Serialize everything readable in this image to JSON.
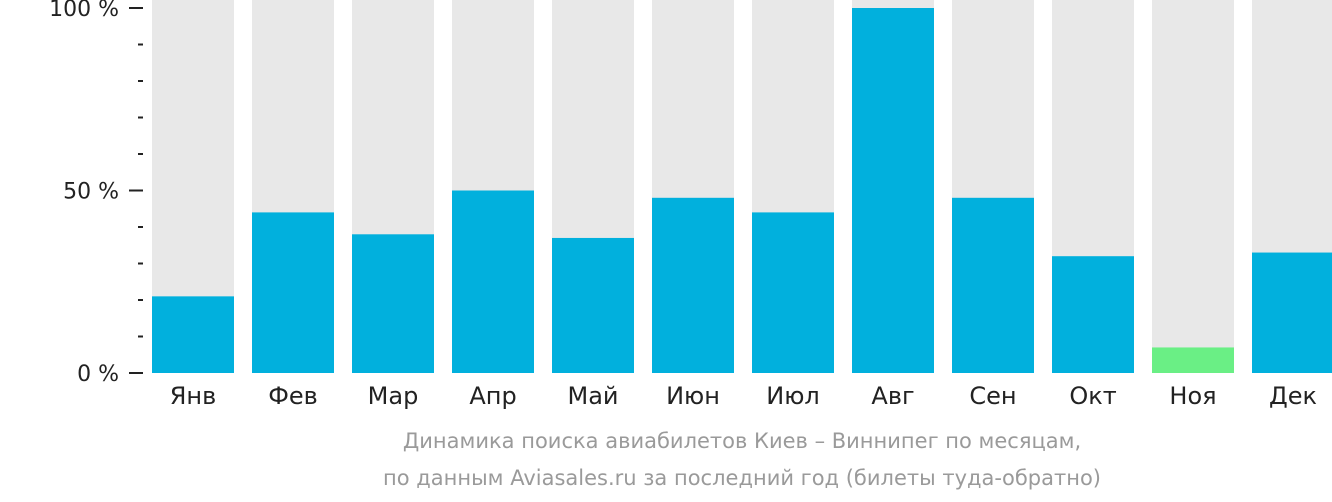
{
  "chart_data": {
    "type": "bar",
    "categories": [
      "Янв",
      "Фев",
      "Мар",
      "Апр",
      "Май",
      "Июн",
      "Июл",
      "Авг",
      "Сен",
      "Окт",
      "Ноя",
      "Дек"
    ],
    "values": [
      21,
      44,
      38,
      50,
      37,
      48,
      44,
      100,
      48,
      32,
      7,
      33
    ],
    "ylim": [
      0,
      100
    ],
    "yticks": [
      {
        "value": 0,
        "label": "0 %"
      },
      {
        "value": 50,
        "label": "50 %"
      },
      {
        "value": 100,
        "label": "100 %"
      }
    ],
    "minor_tick_step": 10,
    "colors": {
      "bar": "#01b0dd",
      "bar_lowest": "#6aef85",
      "bar_background": "#e8e8e8",
      "axis": "#222222"
    },
    "highlight_index": 10
  },
  "caption": {
    "line1": "Динамика поиска авиабилетов Киев – Виннипег по месяцам,",
    "line2": "по данным Aviasales.ru за последний год (билеты туда-обратно)"
  }
}
